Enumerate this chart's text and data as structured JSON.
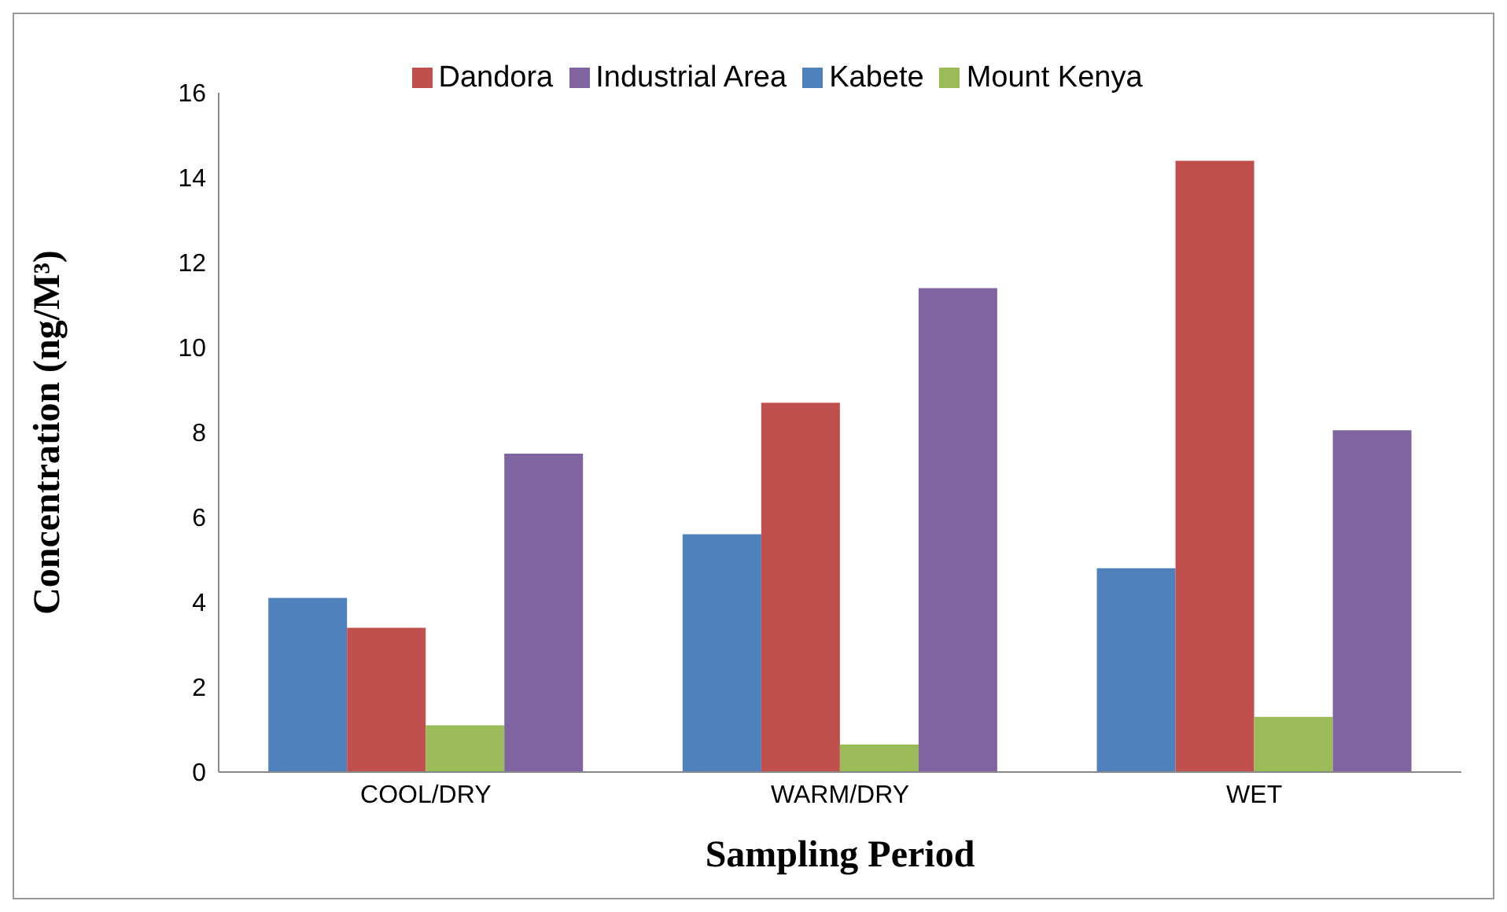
{
  "chart_data": {
    "type": "bar",
    "xlabel": "Sampling Period",
    "ylabel": "Concentration (ng/M³)",
    "categories": [
      "COOL/DRY",
      "WARM/DRY",
      "WET"
    ],
    "series": [
      {
        "name": "Kabete",
        "color": "#4f81bd",
        "values": [
          4.1,
          5.6,
          4.8
        ]
      },
      {
        "name": "Dandora",
        "color": "#c0504d",
        "values": [
          3.4,
          8.7,
          14.4
        ]
      },
      {
        "name": "Mount Kenya",
        "color": "#9bbb59",
        "values": [
          1.1,
          0.65,
          1.3
        ]
      },
      {
        "name": "Industrial Area",
        "color": "#8064a2",
        "values": [
          7.5,
          11.4,
          8.05
        ]
      }
    ],
    "ylim": [
      0,
      16
    ],
    "yticks": [
      0,
      2,
      4,
      6,
      8,
      10,
      12,
      14,
      16
    ],
    "grid": false,
    "legend": "top"
  }
}
